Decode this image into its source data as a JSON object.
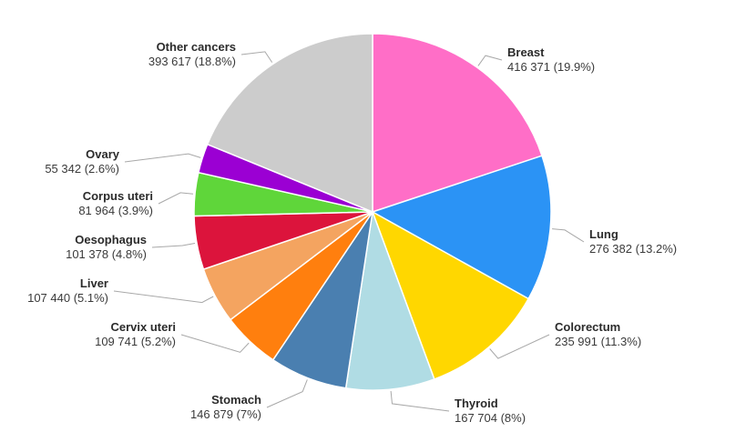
{
  "chart_data": {
    "type": "pie",
    "slices": [
      {
        "label": "Breast",
        "value": 416371,
        "value_text": "416 371 (19.9%)",
        "color": "#ff6ec7"
      },
      {
        "label": "Lung",
        "value": 276382,
        "value_text": "276 382 (13.2%)",
        "color": "#2b93f5"
      },
      {
        "label": "Colorectum",
        "value": 235991,
        "value_text": "235 991 (11.3%)",
        "color": "#ffd700"
      },
      {
        "label": "Thyroid",
        "value": 167704,
        "value_text": "167 704 (8%)",
        "color": "#b0dce4"
      },
      {
        "label": "Stomach",
        "value": 146879,
        "value_text": "146 879 (7%)",
        "color": "#4a7fb0"
      },
      {
        "label": "Cervix uteri",
        "value": 109741,
        "value_text": "109 741 (5.2%)",
        "color": "#ff7f0e"
      },
      {
        "label": "Liver",
        "value": 107440,
        "value_text": "107 440 (5.1%)",
        "color": "#f4a460"
      },
      {
        "label": "Oesophagus",
        "value": 101378,
        "value_text": "101 378 (4.8%)",
        "color": "#dc143c"
      },
      {
        "label": "Corpus uteri",
        "value": 81964,
        "value_text": "81 964 (3.9%)",
        "color": "#5fd63a"
      },
      {
        "label": "Ovary",
        "value": 55342,
        "value_text": "55 342 (2.6%)",
        "color": "#9b00d3"
      },
      {
        "label": "Other cancers",
        "value": 393617,
        "value_text": "393 617 (18.8%)",
        "color": "#cccccc"
      }
    ]
  }
}
